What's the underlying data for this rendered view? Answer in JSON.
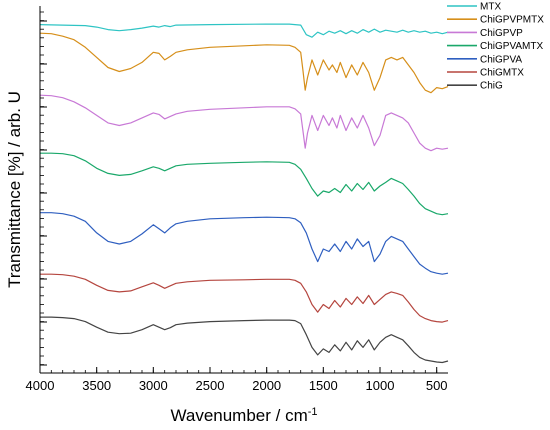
{
  "chart_data": {
    "type": "line",
    "title": "",
    "xlabel": "Wavenumber / cm",
    "xlabel_superscript": "-1",
    "ylabel": "Transmittance [%] / arb. U",
    "xlim": [
      4000,
      400
    ],
    "x_reversed": true,
    "ylim": [
      0,
      7
    ],
    "y_tick_labels": false,
    "x_ticks": [
      4000,
      3500,
      3000,
      2500,
      2000,
      1500,
      1000,
      500
    ],
    "grid": false,
    "legend_position": "top-right",
    "series": [
      {
        "name": "MTX",
        "color": "#2ec4c4",
        "x": [
          4000,
          3800,
          3600,
          3500,
          3400,
          3300,
          3200,
          3100,
          3000,
          2950,
          2900,
          2850,
          2800,
          2500,
          2000,
          1800,
          1700,
          1650,
          1600,
          1550,
          1500,
          1450,
          1400,
          1350,
          1300,
          1250,
          1200,
          1150,
          1100,
          1050,
          1000,
          950,
          900,
          850,
          800,
          750,
          700,
          650,
          600,
          550,
          500,
          450,
          400
        ],
        "y": [
          6.75,
          6.74,
          6.73,
          6.7,
          6.65,
          6.63,
          6.65,
          6.68,
          6.72,
          6.7,
          6.73,
          6.71,
          6.74,
          6.75,
          6.76,
          6.76,
          6.74,
          6.55,
          6.5,
          6.6,
          6.55,
          6.62,
          6.58,
          6.63,
          6.57,
          6.63,
          6.58,
          6.65,
          6.6,
          6.66,
          6.6,
          6.64,
          6.62,
          6.6,
          6.64,
          6.6,
          6.63,
          6.6,
          6.62,
          6.58,
          6.6,
          6.57,
          6.6
        ]
      },
      {
        "name": "ChiGPVPMTX",
        "color": "#d68f1a",
        "x": [
          4000,
          3900,
          3800,
          3700,
          3600,
          3500,
          3400,
          3300,
          3200,
          3100,
          3000,
          2950,
          2900,
          2850,
          2800,
          2700,
          2500,
          2200,
          2000,
          1800,
          1750,
          1700,
          1680,
          1660,
          1640,
          1600,
          1550,
          1500,
          1450,
          1420,
          1380,
          1350,
          1300,
          1250,
          1200,
          1150,
          1100,
          1050,
          1000,
          950,
          900,
          850,
          800,
          750,
          700,
          650,
          600,
          550,
          500,
          450,
          400
        ],
        "y": [
          6.58,
          6.57,
          6.52,
          6.45,
          6.3,
          6.1,
          5.9,
          5.82,
          5.88,
          6.0,
          6.2,
          6.18,
          6.05,
          6.12,
          6.2,
          6.25,
          6.3,
          6.33,
          6.35,
          6.34,
          6.3,
          6.2,
          5.85,
          5.45,
          5.7,
          6.05,
          5.75,
          6.05,
          5.85,
          5.95,
          5.8,
          6.0,
          5.7,
          5.95,
          5.75,
          6.0,
          5.8,
          5.45,
          5.7,
          6.05,
          6.1,
          6.05,
          6.1,
          5.95,
          5.8,
          5.6,
          5.45,
          5.4,
          5.5,
          5.48,
          5.52
        ]
      },
      {
        "name": "ChiGPVP",
        "color": "#c879d6",
        "x": [
          4000,
          3900,
          3800,
          3700,
          3600,
          3500,
          3400,
          3300,
          3200,
          3100,
          3000,
          2950,
          2900,
          2850,
          2800,
          2700,
          2500,
          2200,
          2000,
          1800,
          1750,
          1700,
          1680,
          1660,
          1640,
          1600,
          1550,
          1500,
          1450,
          1420,
          1380,
          1350,
          1300,
          1250,
          1200,
          1150,
          1100,
          1050,
          1000,
          950,
          900,
          850,
          800,
          750,
          700,
          650,
          600,
          550,
          500,
          450,
          400
        ],
        "y": [
          5.35,
          5.34,
          5.3,
          5.22,
          5.1,
          4.95,
          4.8,
          4.75,
          4.8,
          4.9,
          5.0,
          4.97,
          4.88,
          4.93,
          4.98,
          5.03,
          5.07,
          5.1,
          5.12,
          5.12,
          5.08,
          4.98,
          4.65,
          4.3,
          4.6,
          4.95,
          4.65,
          4.95,
          4.75,
          4.9,
          4.7,
          4.95,
          4.65,
          4.9,
          4.7,
          4.95,
          4.7,
          4.35,
          4.55,
          4.95,
          5.0,
          4.95,
          4.9,
          4.8,
          4.6,
          4.4,
          4.3,
          4.25,
          4.3,
          4.28,
          4.3
        ]
      },
      {
        "name": "ChiGPVAMTX",
        "color": "#1aa86a",
        "x": [
          4000,
          3900,
          3800,
          3700,
          3600,
          3500,
          3400,
          3300,
          3200,
          3100,
          3000,
          2950,
          2900,
          2850,
          2800,
          2700,
          2500,
          2200,
          2000,
          1800,
          1750,
          1700,
          1650,
          1600,
          1550,
          1500,
          1450,
          1400,
          1350,
          1300,
          1250,
          1200,
          1150,
          1100,
          1050,
          1000,
          950,
          900,
          850,
          800,
          750,
          700,
          650,
          600,
          550,
          500,
          450,
          400
        ],
        "y": [
          4.2,
          4.2,
          4.19,
          4.15,
          4.05,
          3.9,
          3.8,
          3.76,
          3.78,
          3.85,
          3.93,
          3.9,
          3.85,
          3.9,
          3.95,
          3.98,
          4.0,
          4.02,
          4.03,
          4.02,
          3.98,
          3.88,
          3.7,
          3.5,
          3.35,
          3.45,
          3.42,
          3.5,
          3.42,
          3.58,
          3.45,
          3.6,
          3.48,
          3.62,
          3.45,
          3.55,
          3.62,
          3.7,
          3.65,
          3.6,
          3.48,
          3.35,
          3.2,
          3.1,
          3.05,
          3.0,
          2.98,
          3.0
        ]
      },
      {
        "name": "ChiGPVA",
        "color": "#2f5fc0",
        "x": [
          4000,
          3900,
          3800,
          3700,
          3600,
          3500,
          3400,
          3300,
          3200,
          3100,
          3000,
          2950,
          2900,
          2850,
          2800,
          2700,
          2500,
          2200,
          2000,
          1800,
          1750,
          1700,
          1650,
          1600,
          1550,
          1500,
          1450,
          1400,
          1350,
          1300,
          1250,
          1200,
          1150,
          1100,
          1050,
          1000,
          950,
          900,
          850,
          800,
          750,
          700,
          650,
          600,
          550,
          500,
          450,
          400
        ],
        "y": [
          3.02,
          3.02,
          3.0,
          2.95,
          2.85,
          2.62,
          2.45,
          2.4,
          2.45,
          2.6,
          2.78,
          2.7,
          2.62,
          2.72,
          2.8,
          2.85,
          2.9,
          2.92,
          2.93,
          2.92,
          2.9,
          2.82,
          2.62,
          2.3,
          2.05,
          2.3,
          2.25,
          2.4,
          2.25,
          2.45,
          2.3,
          2.5,
          2.35,
          2.45,
          2.05,
          2.2,
          2.45,
          2.55,
          2.5,
          2.45,
          2.3,
          2.15,
          2.0,
          1.92,
          1.85,
          1.82,
          1.8,
          1.82
        ]
      },
      {
        "name": "ChiGMTX",
        "color": "#b5463f",
        "x": [
          4000,
          3900,
          3800,
          3700,
          3600,
          3500,
          3400,
          3300,
          3200,
          3100,
          3000,
          2950,
          2900,
          2850,
          2800,
          2700,
          2500,
          2200,
          2000,
          1800,
          1750,
          1700,
          1650,
          1600,
          1550,
          1500,
          1450,
          1400,
          1350,
          1300,
          1250,
          1200,
          1150,
          1100,
          1050,
          1000,
          950,
          900,
          850,
          800,
          750,
          700,
          650,
          600,
          550,
          500,
          450,
          400
        ],
        "y": [
          1.8,
          1.8,
          1.79,
          1.76,
          1.7,
          1.58,
          1.48,
          1.45,
          1.47,
          1.55,
          1.63,
          1.58,
          1.52,
          1.57,
          1.62,
          1.65,
          1.68,
          1.69,
          1.7,
          1.7,
          1.68,
          1.62,
          1.45,
          1.2,
          1.05,
          1.2,
          1.12,
          1.28,
          1.15,
          1.32,
          1.2,
          1.35,
          1.22,
          1.38,
          1.2,
          1.3,
          1.4,
          1.45,
          1.42,
          1.38,
          1.25,
          1.1,
          0.98,
          0.92,
          0.88,
          0.86,
          0.85,
          0.88
        ]
      },
      {
        "name": "ChiG",
        "color": "#444444",
        "x": [
          4000,
          3900,
          3800,
          3700,
          3600,
          3500,
          3400,
          3300,
          3200,
          3100,
          3000,
          2950,
          2900,
          2850,
          2800,
          2700,
          2500,
          2200,
          2000,
          1800,
          1750,
          1700,
          1650,
          1600,
          1550,
          1500,
          1450,
          1400,
          1350,
          1300,
          1250,
          1200,
          1150,
          1100,
          1050,
          1000,
          950,
          900,
          850,
          800,
          750,
          700,
          650,
          600,
          550,
          500,
          450,
          400
        ],
        "y": [
          0.95,
          0.95,
          0.94,
          0.92,
          0.86,
          0.75,
          0.65,
          0.62,
          0.63,
          0.7,
          0.8,
          0.75,
          0.7,
          0.74,
          0.8,
          0.83,
          0.86,
          0.88,
          0.89,
          0.89,
          0.88,
          0.82,
          0.6,
          0.35,
          0.2,
          0.32,
          0.25,
          0.4,
          0.28,
          0.45,
          0.3,
          0.48,
          0.35,
          0.5,
          0.3,
          0.45,
          0.55,
          0.6,
          0.55,
          0.5,
          0.38,
          0.25,
          0.15,
          0.1,
          0.08,
          0.06,
          0.05,
          0.08
        ]
      }
    ]
  }
}
